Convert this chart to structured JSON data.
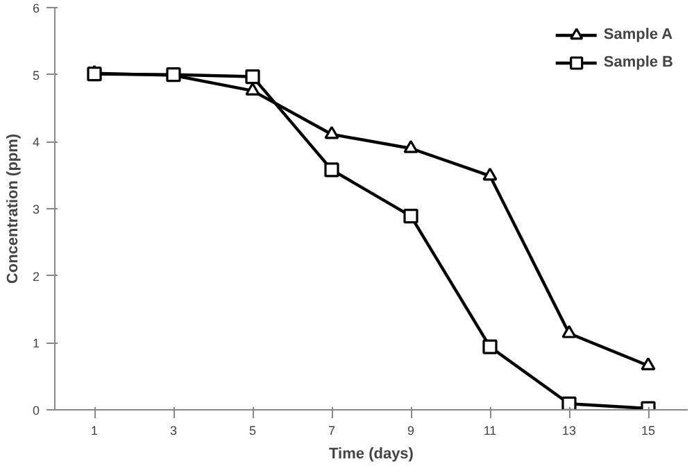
{
  "chart_data": {
    "type": "line",
    "xlabel": "Time (days)",
    "ylabel": "Concentration (ppm)",
    "x": [
      1,
      3,
      5,
      7,
      9,
      11,
      13,
      15
    ],
    "xlim": [
      0,
      16
    ],
    "xticks": [
      1,
      3,
      5,
      7,
      9,
      11,
      13,
      15
    ],
    "ylim": [
      0,
      6
    ],
    "yticks": [
      0,
      1,
      2,
      3,
      4,
      5,
      6
    ],
    "grid": false,
    "legend": "top right",
    "line_style": "solid",
    "series": [
      {
        "name": "Sample A",
        "color": "#000000",
        "marker": "triangle",
        "values": [
          5.02,
          4.99,
          4.76,
          4.11,
          3.9,
          3.49,
          1.14,
          0.66
        ]
      },
      {
        "name": "Sample B",
        "color": "#000000",
        "marker": "square",
        "values": [
          5.01,
          5.0,
          4.97,
          3.58,
          2.89,
          0.94,
          0.09,
          0.02
        ]
      }
    ]
  }
}
